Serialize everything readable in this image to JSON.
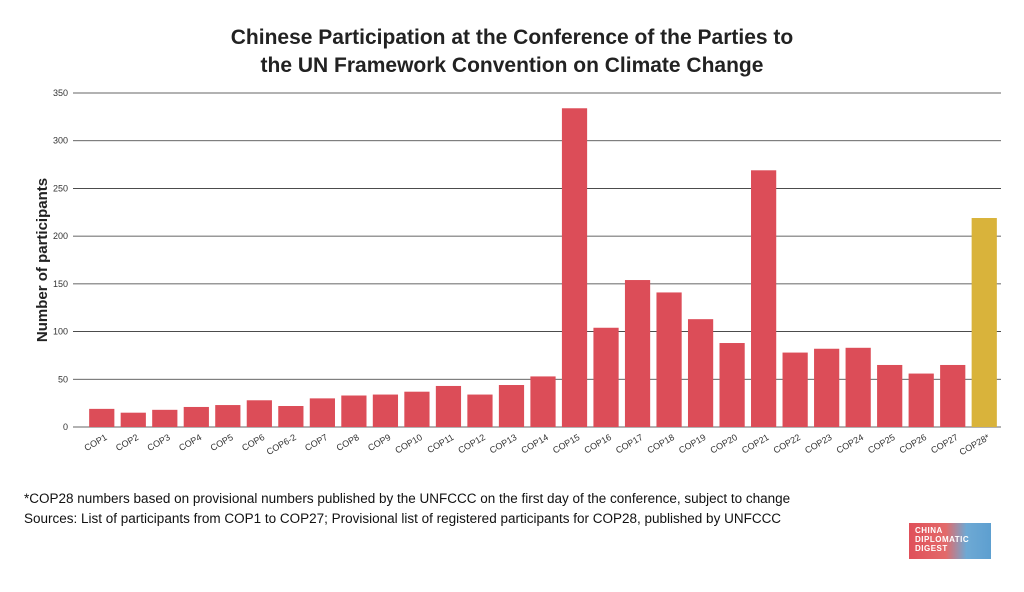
{
  "chart_data": {
    "type": "bar",
    "title": [
      "Chinese Participation at the Conference of the Parties to",
      "the UN Framework Convention on Climate Change"
    ],
    "ylabel": "Number of participants",
    "xlabel": "",
    "ylim": [
      0,
      350
    ],
    "yticks": [
      0,
      50,
      100,
      150,
      200,
      250,
      300,
      350
    ],
    "grid": true,
    "categories": [
      "COP1",
      "COP2",
      "COP3",
      "COP4",
      "COP5",
      "COP6",
      "COP6-2",
      "COP7",
      "COP8",
      "COP9",
      "COP10",
      "COP11",
      "COP12",
      "COP13",
      "COP14",
      "COP15",
      "COP16",
      "COP17",
      "COP18",
      "COP19",
      "COP20",
      "COP21",
      "COP22",
      "COP23",
      "COP24",
      "COP25",
      "COP26",
      "COP27",
      "COP28*"
    ],
    "values": [
      19,
      15,
      18,
      21,
      23,
      28,
      22,
      30,
      33,
      34,
      37,
      43,
      34,
      44,
      53,
      334,
      104,
      154,
      141,
      113,
      88,
      269,
      78,
      82,
      83,
      65,
      56,
      65,
      219
    ],
    "colors": {
      "default": "#dc4d58",
      "highlight": "#d9b33b"
    },
    "highlight_category": "COP28*"
  },
  "footnote": {
    "line1": "*COP28 numbers based on provisional numbers published by the UNFCCC on the first day of the conference, subject to change",
    "line2": "Sources: List of participants from COP1 to COP27; Provisional list of registered participants for COP28, published by UNFCCC"
  },
  "logo": {
    "line1": "CHINA",
    "line2": "DIPLOMATIC",
    "line3": "DIGEST"
  }
}
